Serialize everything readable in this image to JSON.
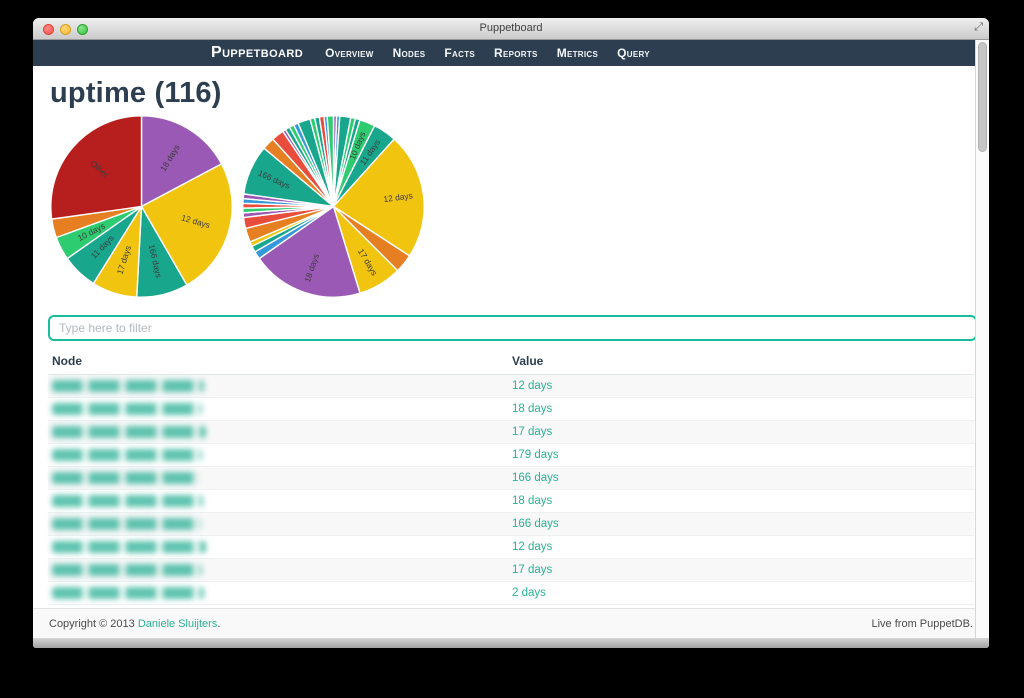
{
  "window": {
    "title": "Puppetboard",
    "fullscreen_icon": "⤢"
  },
  "navbar": {
    "brand": "Puppetboard",
    "items": [
      "Overview",
      "Nodes",
      "Facts",
      "Reports",
      "Metrics",
      "Query"
    ]
  },
  "page": {
    "title": "uptime (116)"
  },
  "filter": {
    "placeholder": "Type here to filter",
    "value": ""
  },
  "table": {
    "columns": [
      "Node",
      "Value"
    ],
    "rows": [
      {
        "node": "(blurred)",
        "value": "12 days"
      },
      {
        "node": "(blurred)",
        "value": "18 days"
      },
      {
        "node": "(blurred)",
        "value": "17 days"
      },
      {
        "node": "(blurred)",
        "value": "179 days"
      },
      {
        "node": "(blurred)",
        "value": "166 days"
      },
      {
        "node": "(blurred)",
        "value": "18 days"
      },
      {
        "node": "(blurred)",
        "value": "166 days"
      },
      {
        "node": "(blurred)",
        "value": "12 days"
      },
      {
        "node": "(blurred)",
        "value": "17 days"
      },
      {
        "node": "(blurred)",
        "value": "2 days"
      }
    ]
  },
  "footer": {
    "copyright_prefix": "Copyright © 2013 ",
    "copyright_link": "Daniele Sluijters",
    "copyright_suffix": ".",
    "live_text": "Live from PuppetDB."
  },
  "colors": {
    "navbar": "#2c3e50",
    "heading": "#2c3e50",
    "accent_teal": "#2ab095",
    "input_border": "#1abc9c"
  },
  "chart_data": [
    {
      "type": "pie",
      "name": "uptime-pie-merged",
      "unit": "degrees",
      "start_angle": "top",
      "direction": "clockwise",
      "label_radius": 0.62,
      "slices": [
        {
          "label": "18 days",
          "color": "#9b59b6",
          "deg": 62
        },
        {
          "label": "12 days",
          "color": "#f1c40f",
          "deg": 88
        },
        {
          "label": "166 days",
          "color": "#18a78c",
          "deg": 33
        },
        {
          "label": "17 days",
          "color": "#f1c40f",
          "deg": 29
        },
        {
          "label": "11 days",
          "color": "#18a78c",
          "deg": 23
        },
        {
          "label": "10 days",
          "color": "#2ecc71",
          "deg": 15
        },
        {
          "label": "",
          "color": "#e67e22",
          "deg": 12
        },
        {
          "label": "Other",
          "color": "#b71f1f",
          "deg": 98
        }
      ]
    },
    {
      "type": "pie",
      "name": "uptime-pie-detailed",
      "unit": "degrees",
      "start_angle": "top",
      "direction": "clockwise",
      "label_radius": 0.72,
      "slices": [
        {
          "label": "",
          "color": "#9b59b6",
          "deg": 2
        },
        {
          "label": "",
          "color": "#3498db",
          "deg": 2
        },
        {
          "label": "",
          "color": "#18a78c",
          "deg": 7
        },
        {
          "label": "",
          "color": "#2ecc71",
          "deg": 3
        },
        {
          "label": "",
          "color": "#18a78c",
          "deg": 3
        },
        {
          "label": "10 days",
          "color": "#2ecc71",
          "deg": 10
        },
        {
          "label": "11 days",
          "color": "#18a78c",
          "deg": 15
        },
        {
          "label": "12 days",
          "color": "#f1c40f",
          "deg": 81
        },
        {
          "label": "",
          "color": "#e67e22",
          "deg": 12
        },
        {
          "label": "17 days",
          "color": "#f1c40f",
          "deg": 28
        },
        {
          "label": "18 days",
          "color": "#9b59b6",
          "deg": 72
        },
        {
          "label": "",
          "color": "#3498db",
          "deg": 5
        },
        {
          "label": "",
          "color": "#18a78c",
          "deg": 4
        },
        {
          "label": "",
          "color": "#f1c40f",
          "deg": 3
        },
        {
          "label": "",
          "color": "#e67e22",
          "deg": 9
        },
        {
          "label": "",
          "color": "#e74c3c",
          "deg": 7
        },
        {
          "label": "",
          "color": "#9b59b6",
          "deg": 3
        },
        {
          "label": "",
          "color": "#2ecc71",
          "deg": 3
        },
        {
          "label": "",
          "color": "#e74c3c",
          "deg": 3
        },
        {
          "label": "",
          "color": "#3498db",
          "deg": 3
        },
        {
          "label": "",
          "color": "#9b59b6",
          "deg": 3
        },
        {
          "label": "166 days",
          "color": "#18a78c",
          "deg": 32
        },
        {
          "label": "",
          "color": "#e67e22",
          "deg": 8
        },
        {
          "label": "",
          "color": "#e74c3c",
          "deg": 8
        },
        {
          "label": "",
          "color": "#9b59b6",
          "deg": 2
        },
        {
          "label": "",
          "color": "#18a78c",
          "deg": 3
        },
        {
          "label": "",
          "color": "#2ecc71",
          "deg": 3
        },
        {
          "label": "",
          "color": "#3498db",
          "deg": 3
        },
        {
          "label": "",
          "color": "#18a78c",
          "deg": 8
        },
        {
          "label": "",
          "color": "#2ecc71",
          "deg": 3
        },
        {
          "label": "",
          "color": "#18a78c",
          "deg": 3
        },
        {
          "label": "",
          "color": "#e74c3c",
          "deg": 3
        },
        {
          "label": "",
          "color": "#3498db",
          "deg": 2
        },
        {
          "label": "",
          "color": "#2ecc71",
          "deg": 4
        }
      ]
    }
  ]
}
